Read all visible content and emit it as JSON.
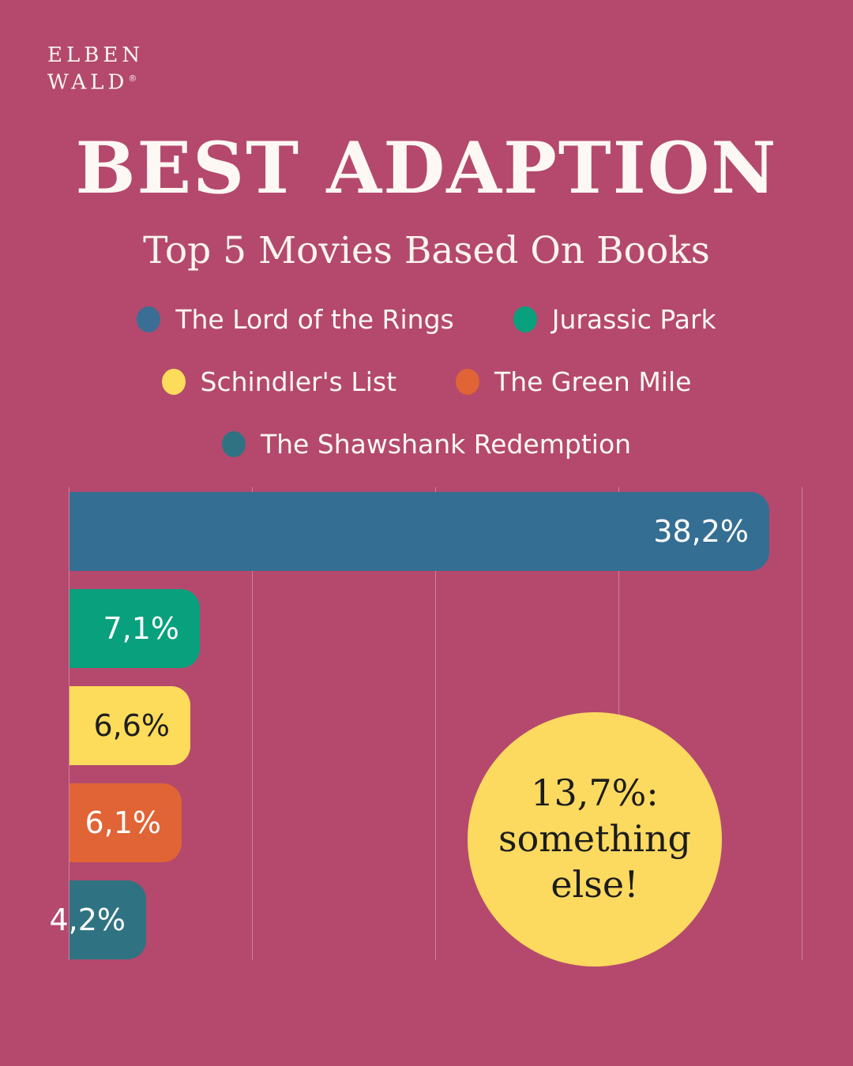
{
  "brand": {
    "line1": "ELBEN",
    "line2": "WALD",
    "registered": "®"
  },
  "header": {
    "title": "BEST ADAPTION",
    "subtitle": "Top 5 Movies Based On Books"
  },
  "legend": {
    "items": [
      {
        "label": "The Lord of the Rings",
        "color": "#3a6e94"
      },
      {
        "label": "Jurassic Park",
        "color": "#09a07d"
      },
      {
        "label": "Schindler's List",
        "color": "#fedc5b"
      },
      {
        "label": "The Green Mile",
        "color": "#e06435"
      },
      {
        "label": "The Shawshank Redemption",
        "color": "#2f7382"
      }
    ]
  },
  "chart_data": {
    "type": "bar",
    "orientation": "horizontal",
    "categories": [
      "The Lord of the Rings",
      "Jurassic Park",
      "Schindler's List",
      "The Green Mile",
      "The Shawshank Redemption"
    ],
    "values": [
      38.2,
      7.1,
      6.6,
      6.1,
      4.2
    ],
    "value_labels": [
      "38,2%",
      "7,1%",
      "6,6%",
      "6,1%",
      "4,2%"
    ],
    "bar_colors": [
      "#356e93",
      "#09a07d",
      "#fedc5b",
      "#e06435",
      "#2f7382"
    ],
    "value_label_colors": [
      "#ffffff",
      "#ffffff",
      "#1f1f1f",
      "#ffffff",
      "#ffffff"
    ],
    "title": "BEST ADAPTION",
    "subtitle": "Top 5 Movies Based On Books",
    "xlabel": "",
    "ylabel": "",
    "xlim": [
      0,
      40
    ],
    "gridline_step": 10,
    "grid": true,
    "axis_tick_labels_visible": false,
    "legend_position": "top"
  },
  "callout": {
    "lines": [
      "13,7%:",
      "something",
      "else!"
    ],
    "background": "#fcd95f"
  },
  "colors": {
    "background": "#b4496d",
    "heading_text": "#fdf8f3",
    "gridline": "rgba(255,255,255,0.32)"
  }
}
